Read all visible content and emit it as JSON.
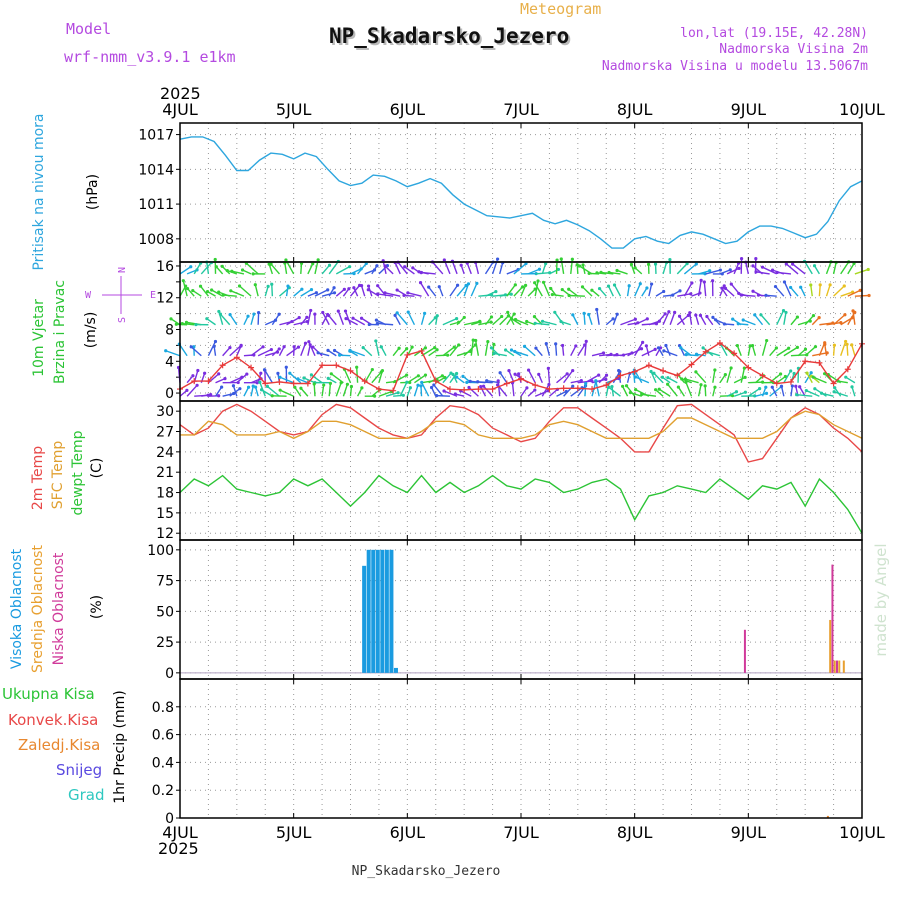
{
  "header": {
    "model_label": "Model",
    "model_name": "wrf-nmm_v3.9.1 e1km",
    "meteogram_label": "Meteogram",
    "station_title": "NP_Skadarsko_Jezero",
    "lonlat": "lon,lat (19.15E, 42.28N)",
    "altitude": "Nadmorska Visina 2m",
    "model_altitude": "Nadmorska Visina u modelu 13.5067m",
    "footer_station": "NP_Skadarsko_Jezero",
    "watermark": "made by Angel",
    "colors": {
      "purple": "#b44ae0",
      "orange": "#e8b04a",
      "title": "#111111"
    }
  },
  "time_axis": {
    "year_top": "2025",
    "year_bottom": "2025",
    "ticks": [
      "4JUL",
      "5JUL",
      "6JUL",
      "7JUL",
      "8JUL",
      "9JUL",
      "10JUL"
    ]
  },
  "chart_data": [
    {
      "type": "line",
      "panel": "pressure",
      "ylabel_title": "Pritisak na nivou mora",
      "ylabel_unit": "(hPa)",
      "title_color": "#2ea6de",
      "ylim": [
        1006,
        1018
      ],
      "yticks": [
        "1008",
        "1011",
        "1014",
        "1017"
      ],
      "grid": true,
      "x_days": [
        0,
        0.1,
        0.2,
        0.3,
        0.4,
        0.5,
        0.6,
        0.7,
        0.8,
        0.9,
        1.0,
        1.1,
        1.2,
        1.3,
        1.4,
        1.5,
        1.6,
        1.7,
        1.8,
        1.9,
        2.0,
        2.1,
        2.2,
        2.3,
        2.4,
        2.5,
        2.6,
        2.7,
        2.8,
        2.9,
        3.0,
        3.1,
        3.2,
        3.3,
        3.4,
        3.5,
        3.6,
        3.7,
        3.8,
        3.9,
        4.0,
        4.1,
        4.2,
        4.3,
        4.4,
        4.5,
        4.6,
        4.7,
        4.8,
        4.9,
        5.0,
        5.1,
        5.2,
        5.3,
        5.4,
        5.5,
        5.6,
        5.7,
        5.8,
        5.9,
        6.0
      ],
      "series": [
        {
          "color": "#2ea6de",
          "values": [
            1016.6,
            1016.8,
            1016.8,
            1016.4,
            1015.2,
            1013.9,
            1013.9,
            1014.8,
            1015.4,
            1015.3,
            1014.9,
            1015.4,
            1015.1,
            1014.0,
            1013.0,
            1012.6,
            1012.8,
            1013.5,
            1013.4,
            1013.0,
            1012.5,
            1012.8,
            1013.2,
            1012.8,
            1011.8,
            1011.0,
            1010.5,
            1010.0,
            1009.9,
            1009.8,
            1010.0,
            1010.2,
            1009.6,
            1009.3,
            1009.6,
            1009.2,
            1008.7,
            1008.0,
            1007.2,
            1007.2,
            1008.0,
            1008.2,
            1007.8,
            1007.6,
            1008.3,
            1008.6,
            1008.4,
            1008.0,
            1007.6,
            1007.8,
            1008.6,
            1009.1,
            1009.1,
            1008.9,
            1008.5,
            1008.1,
            1008.4,
            1009.5,
            1011.3,
            1012.5,
            1013.0
          ]
        }
      ]
    },
    {
      "type": "line",
      "panel": "wind",
      "ylabel_title": "10m Vjetar",
      "ylabel_title2": "Brzina i Pravac",
      "ylabel_unit": "(m/s)",
      "title_color": "#2cc436",
      "compass": {
        "n": "N",
        "s": "S",
        "w": "W",
        "e": "E"
      },
      "ylim": [
        -1,
        16.5
      ],
      "yticks": [
        "0",
        "4",
        "8",
        "12",
        "16"
      ],
      "yticks_minor": [
        "2",
        "6",
        "10",
        "14"
      ],
      "grid": true,
      "x_days": [
        0,
        0.125,
        0.25,
        0.375,
        0.5,
        0.625,
        0.75,
        0.875,
        1.0,
        1.125,
        1.25,
        1.375,
        1.5,
        1.625,
        1.75,
        1.875,
        2.0,
        2.125,
        2.25,
        2.375,
        2.5,
        2.625,
        2.75,
        2.875,
        3.0,
        3.125,
        3.25,
        3.375,
        3.5,
        3.625,
        3.75,
        3.875,
        4.0,
        4.125,
        4.25,
        4.375,
        4.5,
        4.625,
        4.75,
        4.875,
        5.0,
        5.125,
        5.25,
        5.375,
        5.5,
        5.625,
        5.75,
        5.875,
        6.0
      ],
      "series": [
        {
          "name": "speed",
          "color": "#e83a3a",
          "values": [
            0.5,
            1.5,
            1.5,
            3.5,
            4.5,
            3.2,
            1.2,
            1.4,
            1.2,
            1.2,
            3.5,
            3.5,
            2.8,
            1.5,
            0.5,
            0.3,
            4.8,
            5.3,
            1.5,
            0.5,
            0.4,
            0.5,
            0.5,
            1.2,
            1.8,
            1.0,
            0.5,
            0.6,
            0.6,
            0.5,
            1.0,
            2.2,
            2.7,
            3.5,
            2.8,
            2.2,
            3.6,
            5.2,
            6.3,
            5.0,
            3.2,
            2.2,
            1.2,
            1.4,
            4.0,
            3.8,
            1.2,
            3.0,
            6.2
          ]
        }
      ]
    },
    {
      "type": "line",
      "panel": "temperature",
      "ylabel_title": "2m Temp",
      "ylabel_title2": "SFC Temp",
      "ylabel_title3": "dewpt Temp",
      "ylabel_unit": "(C)",
      "ylim": [
        11,
        31.5
      ],
      "yticks": [
        "12",
        "15",
        "18",
        "21",
        "24",
        "27",
        "30"
      ],
      "grid": true,
      "x_days": [
        0,
        0.125,
        0.25,
        0.375,
        0.5,
        0.625,
        0.75,
        0.875,
        1.0,
        1.125,
        1.25,
        1.375,
        1.5,
        1.625,
        1.75,
        1.875,
        2.0,
        2.125,
        2.25,
        2.375,
        2.5,
        2.625,
        2.75,
        2.875,
        3.0,
        3.125,
        3.25,
        3.375,
        3.5,
        3.625,
        3.75,
        3.875,
        4.0,
        4.125,
        4.25,
        4.375,
        4.5,
        4.625,
        4.75,
        4.875,
        5.0,
        5.125,
        5.25,
        5.375,
        5.5,
        5.625,
        5.75,
        5.875,
        6.0
      ],
      "series": [
        {
          "name": "2m Temp",
          "color": "#e84848",
          "values": [
            28.0,
            26.5,
            27.5,
            30.0,
            31.0,
            30.0,
            28.5,
            27.0,
            26.5,
            27.0,
            29.5,
            31.0,
            30.5,
            29.0,
            27.5,
            26.5,
            26.0,
            26.5,
            29.0,
            30.8,
            30.5,
            29.5,
            27.5,
            26.5,
            25.5,
            26.0,
            28.5,
            30.5,
            30.5,
            29.0,
            27.5,
            26.0,
            24.0,
            24.0,
            27.5,
            30.8,
            31.0,
            29.5,
            28.0,
            26.5,
            22.5,
            23.0,
            26.0,
            29.0,
            30.5,
            29.5,
            27.5,
            26.0,
            24.0
          ]
        },
        {
          "name": "SFC Temp",
          "color": "#e0a030",
          "values": [
            26.5,
            26.5,
            28.5,
            28.0,
            26.5,
            26.5,
            26.5,
            27.0,
            26.0,
            27.0,
            28.5,
            28.5,
            28.0,
            27.0,
            26.0,
            26.0,
            26.0,
            27.0,
            28.5,
            28.5,
            28.0,
            26.5,
            26.0,
            26.0,
            26.0,
            26.5,
            28.0,
            28.5,
            28.0,
            27.0,
            26.0,
            26.0,
            26.0,
            26.0,
            27.0,
            29.0,
            29.0,
            28.0,
            27.0,
            26.0,
            26.0,
            26.0,
            27.0,
            29.0,
            30.0,
            29.5,
            28.0,
            27.0,
            26.0
          ]
        },
        {
          "name": "dewpt Temp",
          "color": "#2cc436",
          "values": [
            18.0,
            20.0,
            19.0,
            20.5,
            18.5,
            18.0,
            17.5,
            18.0,
            20.0,
            19.0,
            20.0,
            18.0,
            16.0,
            18.0,
            20.5,
            19.0,
            18.0,
            20.5,
            18.0,
            19.5,
            18.0,
            19.0,
            20.5,
            19.0,
            18.5,
            20.0,
            19.5,
            18.0,
            18.5,
            19.5,
            20.0,
            18.5,
            14.0,
            17.5,
            18.0,
            19.0,
            18.5,
            18.0,
            20.0,
            18.5,
            17.0,
            19.0,
            18.5,
            19.5,
            16.0,
            20.0,
            18.0,
            15.5,
            12.0
          ]
        }
      ]
    },
    {
      "type": "bar",
      "panel": "clouds",
      "ylabel_title": "Visoka Oblacnost",
      "ylabel_title2": "Srednja Oblacnost",
      "ylabel_title3": "Niska Oblacnost",
      "ylabel_unit": "(%)",
      "ylim": [
        -5,
        108
      ],
      "yticks": [
        "0",
        "25",
        "50",
        "75",
        "100"
      ],
      "grid": true,
      "series": [
        {
          "name": "Visoka Oblacnost",
          "color": "#1a9be0",
          "x_days": [
            1.62,
            1.66,
            1.7,
            1.74,
            1.78,
            1.82,
            1.86,
            1.9
          ],
          "values": [
            87,
            100,
            100,
            100,
            100,
            100,
            100,
            4
          ]
        },
        {
          "name": "Srednja Oblacnost",
          "color": "#e8a030",
          "x_days": [
            5.72,
            5.76,
            5.8,
            5.84
          ],
          "values": [
            43,
            10,
            10,
            10
          ]
        },
        {
          "name": "Niska Oblacnost",
          "color": "#d03a9a",
          "x_days": [
            4.97,
            5.74,
            5.78
          ],
          "values": [
            35,
            88,
            10
          ]
        }
      ]
    },
    {
      "type": "bar",
      "panel": "precip",
      "ylabel_unit": "1hr Precip (mm)",
      "ylim": [
        0,
        1.0
      ],
      "yticks": [
        "0",
        "0.2",
        "0.4",
        "0.6",
        "0.8"
      ],
      "grid": true,
      "legend": [
        {
          "label": "Ukupna Kisa",
          "color": "#2cc436"
        },
        {
          "label": "Konvek.Kisa",
          "color": "#e84848"
        },
        {
          "label": "Zaledj.Kisa",
          "color": "#e88830"
        },
        {
          "label": "Snijeg",
          "color": "#5a4ae0"
        },
        {
          "label": "Grad",
          "color": "#2ec8c0"
        }
      ],
      "series": [
        {
          "name": "Zaledj.Kisa",
          "color": "#e88830",
          "x_days": [
            5.7
          ],
          "values": [
            0.015
          ]
        }
      ]
    }
  ]
}
